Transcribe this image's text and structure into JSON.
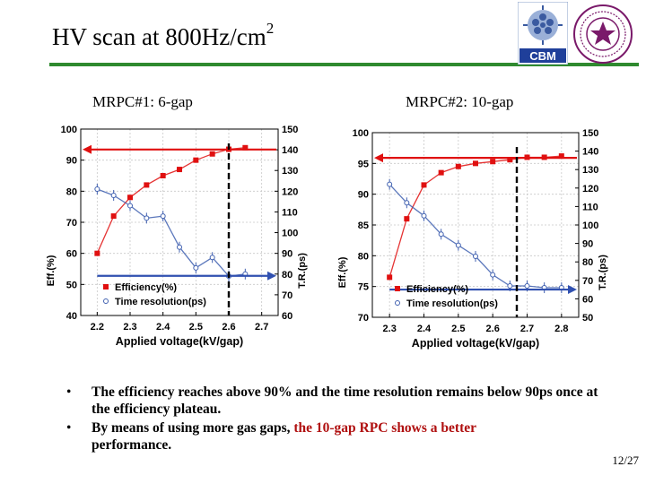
{
  "slide": {
    "title_main": "HV scan at 800Hz/cm",
    "title_sup": "2",
    "logo_text": "CBM",
    "page_number": "12/27",
    "colors": {
      "rule": "#2f8a2f",
      "highlight": "#b01010"
    }
  },
  "charts": [
    {
      "subtitle": "MRPC#1: 6-gap"
    },
    {
      "subtitle": "MRPC#2: 10-gap"
    }
  ],
  "bullets": {
    "b1": "The efficiency reaches above 90% and the time resolution remains below 90ps once at the efficiency plateau.",
    "b2_prefix": "By means of using more gas gaps, ",
    "b2_highlight": "the 10-gap RPC shows a better",
    "b2_suffix": "performance."
  },
  "chart_data": [
    {
      "type": "scatter",
      "title": "MRPC#1: 6-gap",
      "xlabel": "Applied voltage(kV/gap)",
      "ylabel_left": "Eff.(%)",
      "ylabel_right": "T.R.(ps)",
      "xlim": [
        2.15,
        2.75
      ],
      "xticks": [
        2.2,
        2.3,
        2.4,
        2.5,
        2.6,
        2.7
      ],
      "ylim_left": [
        40,
        100
      ],
      "yticks_left": [
        40,
        50,
        60,
        70,
        80,
        90,
        100
      ],
      "ylim_right": [
        60,
        150
      ],
      "yticks_right": [
        60,
        70,
        80,
        90,
        100,
        110,
        120,
        130,
        140,
        150
      ],
      "series": [
        {
          "name": "Efficiency(%)",
          "axis": "left",
          "color": "#e01010",
          "x": [
            2.2,
            2.25,
            2.3,
            2.35,
            2.4,
            2.45,
            2.5,
            2.55,
            2.6,
            2.65
          ],
          "y": [
            60,
            72,
            78,
            82,
            85,
            87,
            90,
            92,
            93.5,
            94
          ]
        },
        {
          "name": "Time resolution(ps)",
          "axis": "right",
          "color": "#4060b0",
          "x": [
            2.2,
            2.25,
            2.3,
            2.35,
            2.4,
            2.45,
            2.5,
            2.55,
            2.6,
            2.65
          ],
          "y": [
            121,
            118,
            113,
            107,
            108,
            93,
            83,
            88,
            79,
            80
          ]
        }
      ],
      "marker_line_x": 2.6
    },
    {
      "type": "scatter",
      "title": "MRPC#2: 10-gap",
      "xlabel": "Applied voltage(kV/gap)",
      "ylabel_left": "Eff.(%)",
      "ylabel_right": "T.R.(ps)",
      "xlim": [
        2.25,
        2.85
      ],
      "xticks": [
        2.3,
        2.4,
        2.5,
        2.6,
        2.7,
        2.8
      ],
      "ylim_left": [
        70,
        100
      ],
      "yticks_left": [
        70,
        75,
        80,
        85,
        90,
        95,
        100
      ],
      "ylim_right": [
        50,
        150
      ],
      "yticks_right": [
        50,
        60,
        70,
        80,
        90,
        100,
        110,
        120,
        130,
        140,
        150
      ],
      "series": [
        {
          "name": "Efficiency(%)",
          "axis": "left",
          "color": "#e01010",
          "x": [
            2.3,
            2.35,
            2.4,
            2.45,
            2.5,
            2.55,
            2.6,
            2.65,
            2.7,
            2.75,
            2.8
          ],
          "y": [
            76.5,
            86,
            91.5,
            93.5,
            94.5,
            95,
            95.3,
            95.6,
            96,
            96,
            96.2
          ]
        },
        {
          "name": "Time resolution(ps)",
          "axis": "right",
          "color": "#4060b0",
          "x": [
            2.3,
            2.35,
            2.4,
            2.45,
            2.5,
            2.55,
            2.6,
            2.65,
            2.7,
            2.75,
            2.8
          ],
          "y": [
            122,
            112,
            105,
            95,
            89,
            83,
            73,
            67,
            67,
            66,
            66
          ]
        }
      ],
      "marker_line_x": 2.67
    }
  ]
}
